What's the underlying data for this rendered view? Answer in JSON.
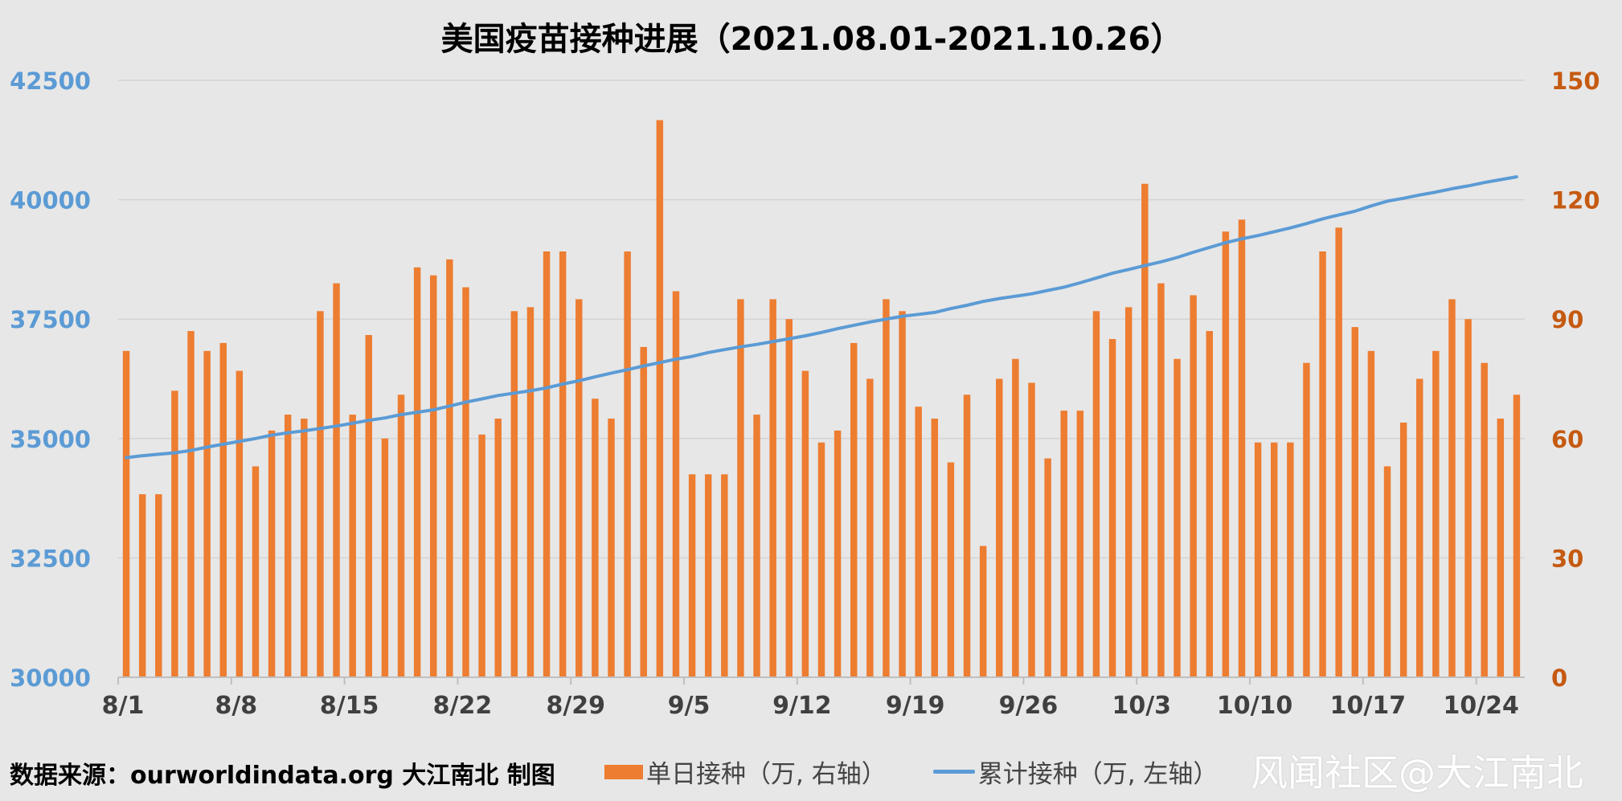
{
  "chart_data": {
    "type": "bar+line",
    "title": "美国疫苗接种进展（2021.08.01-2021.10.26）",
    "x_dates": [
      "8/1",
      "8/2",
      "8/3",
      "8/4",
      "8/5",
      "8/6",
      "8/7",
      "8/8",
      "8/9",
      "8/10",
      "8/11",
      "8/12",
      "8/13",
      "8/14",
      "8/15",
      "8/16",
      "8/17",
      "8/18",
      "8/19",
      "8/20",
      "8/21",
      "8/22",
      "8/23",
      "8/24",
      "8/25",
      "8/26",
      "8/27",
      "8/28",
      "8/29",
      "8/30",
      "8/31",
      "9/1",
      "9/2",
      "9/3",
      "9/4",
      "9/5",
      "9/6",
      "9/7",
      "9/8",
      "9/9",
      "9/10",
      "9/11",
      "9/12",
      "9/13",
      "9/14",
      "9/15",
      "9/16",
      "9/17",
      "9/18",
      "9/19",
      "9/20",
      "9/21",
      "9/22",
      "9/23",
      "9/24",
      "9/25",
      "9/26",
      "9/27",
      "9/28",
      "9/29",
      "9/30",
      "10/1",
      "10/2",
      "10/3",
      "10/4",
      "10/5",
      "10/6",
      "10/7",
      "10/8",
      "10/9",
      "10/10",
      "10/11",
      "10/12",
      "10/13",
      "10/14",
      "10/15",
      "10/16",
      "10/17",
      "10/18",
      "10/19",
      "10/20",
      "10/21",
      "10/22",
      "10/23",
      "10/24",
      "10/25",
      "10/26"
    ],
    "x_tick_labels": [
      "8/1",
      "8/8",
      "8/15",
      "8/22",
      "8/29",
      "9/5",
      "9/12",
      "9/19",
      "9/26",
      "10/3",
      "10/10",
      "10/17",
      "10/24"
    ],
    "series": [
      {
        "name": "单日接种（万, 右轴）",
        "type": "bar",
        "axis": "right",
        "color": "#ed7d31",
        "values": [
          82,
          46,
          46,
          72,
          87,
          82,
          84,
          77,
          53,
          62,
          66,
          65,
          92,
          99,
          66,
          86,
          60,
          71,
          103,
          101,
          105,
          98,
          61,
          65,
          92,
          93,
          107,
          107,
          95,
          70,
          65,
          107,
          83,
          140,
          97,
          51,
          51,
          51,
          95,
          66,
          95,
          90,
          77,
          59,
          62,
          84,
          75,
          95,
          92,
          68,
          65,
          54,
          71,
          33,
          75,
          80,
          74,
          55,
          67,
          67,
          92,
          85,
          93,
          124,
          99,
          80,
          96,
          87,
          112,
          115,
          59,
          59,
          59,
          79,
          107,
          113,
          88,
          82,
          53,
          64,
          75,
          82,
          95,
          90,
          79,
          65,
          71
        ]
      },
      {
        "name": "累计接种（万, 左轴）",
        "type": "line",
        "axis": "left",
        "color": "#5b9bd5",
        "values": [
          34600,
          34640,
          34670,
          34700,
          34750,
          34820,
          34880,
          34940,
          35000,
          35070,
          35120,
          35160,
          35210,
          35260,
          35320,
          35380,
          35430,
          35500,
          35550,
          35600,
          35680,
          35760,
          35830,
          35900,
          35950,
          36000,
          36060,
          36140,
          36210,
          36290,
          36370,
          36440,
          36520,
          36590,
          36660,
          36720,
          36800,
          36860,
          36920,
          36970,
          37030,
          37090,
          37150,
          37220,
          37300,
          37370,
          37440,
          37500,
          37560,
          37600,
          37640,
          37720,
          37790,
          37870,
          37930,
          37980,
          38030,
          38100,
          38170,
          38260,
          38360,
          38460,
          38540,
          38620,
          38700,
          38790,
          38900,
          39000,
          39100,
          39180,
          39250,
          39330,
          39410,
          39500,
          39600,
          39680,
          39760,
          39870,
          39970,
          40030,
          40100,
          40160,
          40230,
          40290,
          40360,
          40420,
          40480
        ]
      }
    ],
    "left_axis": {
      "min": 30000,
      "max": 42500,
      "ticks": [
        30000,
        32500,
        35000,
        37500,
        40000,
        42500
      ],
      "color": "#5b9bd5"
    },
    "right_axis": {
      "min": 0,
      "max": 150,
      "ticks": [
        0,
        30,
        60,
        90,
        120,
        150
      ],
      "color": "#c55a11"
    },
    "grid": true,
    "legend_position": "bottom"
  },
  "footer": {
    "source": "数据来源：ourworldindata.org 大江南北 制图",
    "watermark": "风闻社区@大江南北"
  }
}
